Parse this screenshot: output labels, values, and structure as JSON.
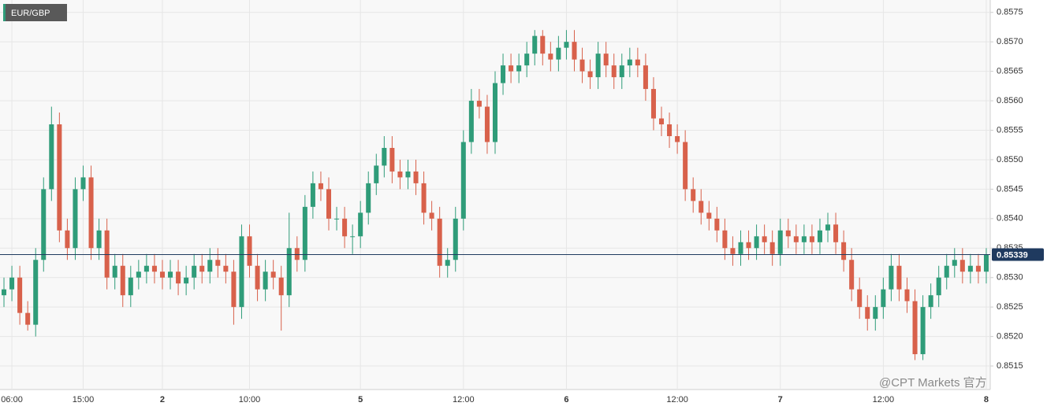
{
  "chart_data": {
    "type": "candlestick",
    "title": "EUR/GBP",
    "watermark": "@CPT Markets 官方",
    "up_color": "#2f9c79",
    "down_color": "#d8614b",
    "price_line_color": "#1f3a5f",
    "grid": true,
    "categories": [
      null,
      "06:00",
      null,
      null,
      null,
      null,
      null,
      null,
      null,
      null,
      "15:00",
      null,
      null,
      null,
      null,
      null,
      null,
      null,
      null,
      null,
      "2",
      null,
      null,
      null,
      null,
      null,
      null,
      null,
      null,
      null,
      null,
      "10:00",
      null,
      null,
      null,
      null,
      null,
      null,
      null,
      null,
      null,
      null,
      null,
      null,
      null,
      "5",
      null,
      null,
      null,
      null,
      null,
      null,
      null,
      null,
      null,
      null,
      null,
      null,
      "12:00",
      null,
      null,
      null,
      null,
      null,
      null,
      null,
      null,
      null,
      null,
      null,
      null,
      "6",
      null,
      null,
      null,
      null,
      null,
      null,
      null,
      null,
      null,
      null,
      null,
      null,
      null,
      "12:00",
      null,
      null,
      null,
      null,
      null,
      null,
      null,
      null,
      null,
      null,
      null,
      null,
      "7",
      null,
      null,
      null,
      null,
      null,
      null,
      null,
      null,
      null,
      null,
      null,
      null,
      "12:00",
      null,
      null,
      null,
      null,
      null,
      null,
      null,
      null,
      null,
      null,
      null,
      null,
      "8"
    ],
    "open": [
      0.8527,
      0.8528,
      0.853,
      0.8524,
      0.8522,
      0.8533,
      0.8545,
      0.8556,
      0.8538,
      0.8535,
      0.8545,
      0.8547,
      0.8535,
      0.8538,
      0.853,
      0.8532,
      0.8527,
      0.853,
      0.8531,
      0.8532,
      0.8531,
      0.853,
      0.8531,
      0.8529,
      0.853,
      0.8532,
      0.8531,
      0.8533,
      0.8532,
      0.8531,
      0.8525,
      0.8537,
      0.8532,
      0.8528,
      0.8531,
      0.853,
      0.8527,
      0.8535,
      0.8533,
      0.8542,
      0.8546,
      0.8545,
      0.854,
      0.854,
      0.8537,
      0.8537,
      0.8541,
      0.8546,
      0.8549,
      0.8552,
      0.8548,
      0.8547,
      0.8548,
      0.8546,
      0.8541,
      0.854,
      0.8532,
      0.8533,
      0.854,
      0.8553,
      0.856,
      0.8559,
      0.8553,
      0.8563,
      0.8566,
      0.8565,
      0.8566,
      0.8568,
      0.8571,
      0.8568,
      0.8567,
      0.8569,
      0.857,
      0.8567,
      0.8565,
      0.8564,
      0.8568,
      0.8566,
      0.8564,
      0.8566,
      0.8567,
      0.8566,
      0.8562,
      0.8557,
      0.8556,
      0.8554,
      0.8553,
      0.8545,
      0.8543,
      0.8541,
      0.854,
      0.8538,
      0.8535,
      0.8534,
      0.8536,
      0.8535,
      0.8537,
      0.8536,
      0.8534,
      0.8538,
      0.8537,
      0.8536,
      0.8537,
      0.8536,
      0.8538,
      0.8539,
      0.8536,
      0.8533,
      0.8528,
      0.8525,
      0.8523,
      0.8525,
      0.8528,
      0.8532,
      0.8528,
      0.8526,
      0.8517,
      0.8525,
      0.8527,
      0.853,
      0.8532,
      0.8533,
      0.8531,
      0.8532,
      0.8531
    ],
    "high": [
      0.853,
      0.8532,
      0.8532,
      0.8526,
      0.8535,
      0.8547,
      0.8559,
      0.8558,
      0.854,
      0.8547,
      0.8549,
      0.8549,
      0.854,
      0.854,
      0.8534,
      0.8534,
      0.8532,
      0.8533,
      0.8534,
      0.8534,
      0.8533,
      0.8533,
      0.8533,
      0.8532,
      0.8534,
      0.8534,
      0.8535,
      0.8535,
      0.8534,
      0.8533,
      0.8539,
      0.8539,
      0.8534,
      0.8533,
      0.8533,
      0.8532,
      0.8541,
      0.8537,
      0.8544,
      0.8548,
      0.8548,
      0.8547,
      0.8542,
      0.8542,
      0.8539,
      0.8543,
      0.8548,
      0.8551,
      0.8554,
      0.8554,
      0.855,
      0.855,
      0.855,
      0.8548,
      0.8543,
      0.8542,
      0.8535,
      0.8542,
      0.8555,
      0.8562,
      0.8562,
      0.8561,
      0.8565,
      0.8568,
      0.8568,
      0.8568,
      0.857,
      0.8572,
      0.8572,
      0.857,
      0.8571,
      0.8572,
      0.8572,
      0.8569,
      0.8567,
      0.857,
      0.857,
      0.8568,
      0.8568,
      0.8569,
      0.8569,
      0.8568,
      0.8564,
      0.8559,
      0.8558,
      0.8556,
      0.8555,
      0.8547,
      0.8545,
      0.8543,
      0.8542,
      0.854,
      0.8537,
      0.8538,
      0.8538,
      0.8539,
      0.8539,
      0.8538,
      0.854,
      0.854,
      0.8539,
      0.8539,
      0.8539,
      0.854,
      0.8541,
      0.8541,
      0.8538,
      0.8535,
      0.853,
      0.8527,
      0.8527,
      0.853,
      0.8534,
      0.8534,
      0.853,
      0.8528,
      0.8527,
      0.8529,
      0.8532,
      0.8534,
      0.8535,
      0.8535,
      0.8534,
      0.8534,
      0.8535
    ],
    "low": [
      0.8525,
      0.8526,
      0.8522,
      0.8521,
      0.852,
      0.8531,
      0.8543,
      0.8536,
      0.8533,
      0.8533,
      0.8543,
      0.8533,
      0.8533,
      0.8528,
      0.8528,
      0.8525,
      0.8525,
      0.8528,
      0.8529,
      0.8529,
      0.8528,
      0.8528,
      0.8527,
      0.8527,
      0.8528,
      0.8529,
      0.8529,
      0.853,
      0.8529,
      0.8522,
      0.8523,
      0.853,
      0.8526,
      0.8526,
      0.8528,
      0.8521,
      0.8525,
      0.8531,
      0.8531,
      0.854,
      0.8543,
      0.8538,
      0.8538,
      0.8535,
      0.8534,
      0.8535,
      0.8539,
      0.8544,
      0.8547,
      0.8546,
      0.8545,
      0.8545,
      0.8544,
      0.8539,
      0.8538,
      0.853,
      0.853,
      0.8531,
      0.8538,
      0.8551,
      0.8557,
      0.8551,
      0.8551,
      0.8561,
      0.8563,
      0.8563,
      0.8564,
      0.8566,
      0.8566,
      0.8565,
      0.8565,
      0.8567,
      0.8565,
      0.8563,
      0.8562,
      0.8562,
      0.8564,
      0.8562,
      0.8562,
      0.8564,
      0.8564,
      0.856,
      0.8555,
      0.8554,
      0.8552,
      0.8551,
      0.8543,
      0.8541,
      0.8539,
      0.8538,
      0.8536,
      0.8533,
      0.8532,
      0.8532,
      0.8533,
      0.8533,
      0.8534,
      0.8532,
      0.8532,
      0.8535,
      0.8534,
      0.8534,
      0.8534,
      0.8534,
      0.8536,
      0.8534,
      0.8531,
      0.8526,
      0.8523,
      0.8521,
      0.8521,
      0.8523,
      0.8526,
      0.8526,
      0.8524,
      0.8516,
      0.8516,
      0.8523,
      0.8525,
      0.8528,
      0.853,
      0.8529,
      0.8529,
      0.8529,
      0.8529
    ],
    "close": [
      0.8528,
      0.853,
      0.8524,
      0.8522,
      0.8533,
      0.8545,
      0.8556,
      0.8538,
      0.8535,
      0.8545,
      0.8547,
      0.8535,
      0.8538,
      0.853,
      0.8532,
      0.8527,
      0.853,
      0.8531,
      0.8532,
      0.8531,
      0.853,
      0.8531,
      0.8529,
      0.853,
      0.8532,
      0.8531,
      0.8533,
      0.8532,
      0.8531,
      0.8525,
      0.8537,
      0.8532,
      0.8528,
      0.8531,
      0.853,
      0.8527,
      0.8535,
      0.8533,
      0.8542,
      0.8546,
      0.8545,
      0.854,
      0.854,
      0.8537,
      0.8537,
      0.8541,
      0.8546,
      0.8549,
      0.8552,
      0.8548,
      0.8547,
      0.8548,
      0.8546,
      0.8541,
      0.854,
      0.8532,
      0.8533,
      0.854,
      0.8553,
      0.856,
      0.8559,
      0.8553,
      0.8563,
      0.8566,
      0.8565,
      0.8566,
      0.8568,
      0.8571,
      0.8568,
      0.8567,
      0.8569,
      0.857,
      0.8567,
      0.8565,
      0.8564,
      0.8568,
      0.8566,
      0.8564,
      0.8566,
      0.8567,
      0.8566,
      0.8562,
      0.8557,
      0.8556,
      0.8554,
      0.8553,
      0.8545,
      0.8543,
      0.8541,
      0.854,
      0.8538,
      0.8535,
      0.8534,
      0.8536,
      0.8535,
      0.8537,
      0.8536,
      0.8534,
      0.8538,
      0.8537,
      0.8536,
      0.8537,
      0.8536,
      0.8538,
      0.8539,
      0.8536,
      0.8533,
      0.8528,
      0.8525,
      0.8523,
      0.8525,
      0.8528,
      0.8532,
      0.8528,
      0.8526,
      0.8517,
      0.8525,
      0.8527,
      0.853,
      0.8532,
      0.8533,
      0.8531,
      0.8532,
      0.8531,
      0.85339
    ],
    "ylim": [
      0.8511,
      0.85771
    ],
    "yticks": [
      0.8515,
      {
        "value": 0.852,
        "label": "0.8520"
      },
      0.8525,
      {
        "value": 0.853,
        "label": "0.8530"
      },
      0.8535,
      {
        "value": 0.854,
        "label": "0.8540"
      },
      0.8545,
      {
        "value": 0.855,
        "label": "0.8550"
      },
      0.8555,
      {
        "value": 0.856,
        "label": "0.8560"
      },
      0.8565,
      {
        "value": 0.857,
        "label": "0.8570"
      },
      0.8575
    ]
  }
}
